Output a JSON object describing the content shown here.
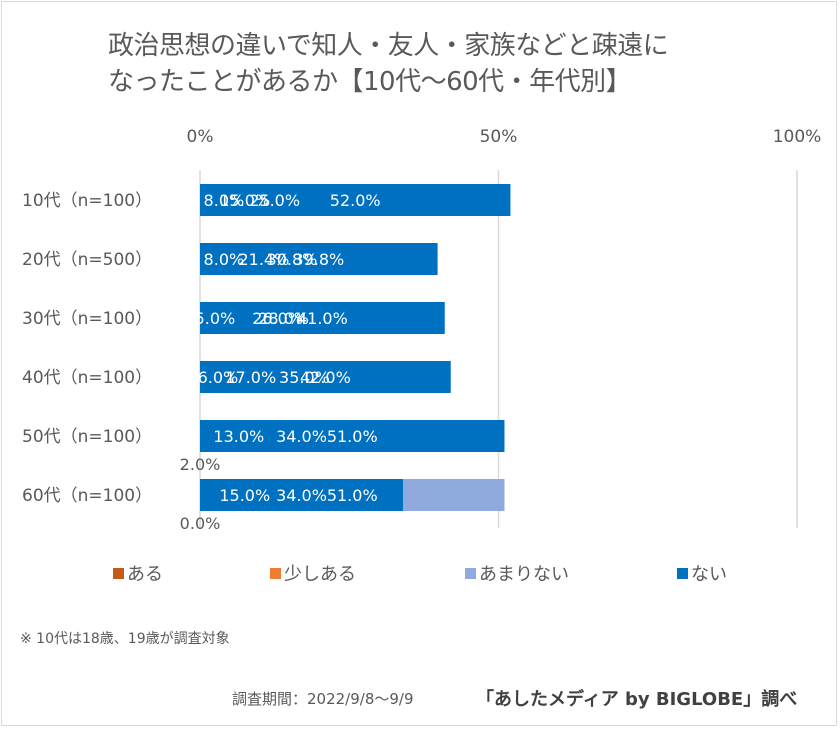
{
  "chart_data": {
    "type": "bar",
    "orientation": "horizontal",
    "stacked": "100%",
    "title": "政治思想の違いで知人・友人・家族などと疎遠になったことがあるか【10代～60代・年代別】",
    "title_lines": [
      "政治思想の違いで知人・友人・家族などと疎遠に",
      "なったことがあるか【10代～60代・年代別】"
    ],
    "xlabel": "",
    "ylabel": "",
    "xlim": [
      0,
      100
    ],
    "x_ticks": [
      "0%",
      "50%",
      "100%"
    ],
    "x_tick_values": [
      0,
      50,
      100
    ],
    "grid": true,
    "legend_position": "bottom",
    "categories": [
      "10代（n=100）",
      "20代（n=500）",
      "30代（n=100）",
      "40代（n=100）",
      "50代（n=100）",
      "60代（n=100）"
    ],
    "series": [
      {
        "name": "ある",
        "color": "#c55a11",
        "values": [
          8.0,
          8.0,
          5.0,
          6.0,
          2.0,
          0.0
        ],
        "labels": [
          "8.0%",
          "8.0%",
          "5.0%",
          "6.0%",
          "2.0%",
          "0.0%"
        ]
      },
      {
        "name": "少しある",
        "color": "#ed7d31",
        "values": [
          15.0,
          21.4,
          26.0,
          17.0,
          13.0,
          15.0
        ],
        "labels": [
          "15.0%",
          "21.4%",
          "26.0%",
          "17.0%",
          "13.0%",
          "15.0%"
        ]
      },
      {
        "name": "あまりない",
        "color": "#8faadc",
        "values": [
          25.0,
          30.8,
          28.0,
          35.0,
          34.0,
          51.0
        ],
        "labels": [
          "25.0%",
          "30.8%",
          "28.0%",
          "35.0%",
          "34.0%",
          "51.0%"
        ]
      },
      {
        "name": "ない",
        "color": "#0070c0",
        "values": [
          52.0,
          39.8,
          41.0,
          42.0,
          51.0,
          34.0
        ],
        "labels": [
          "52.0%",
          "39.8%",
          "41.0%",
          "42.0%",
          "51.0%",
          "34.0%"
        ]
      }
    ]
  },
  "footer": {
    "note": "※ 10代は18歳、19歳が調査対象",
    "period": "調査期間：2022/9/8～9/9",
    "source": "「あしたメディア by BIGLOBE」調べ"
  }
}
